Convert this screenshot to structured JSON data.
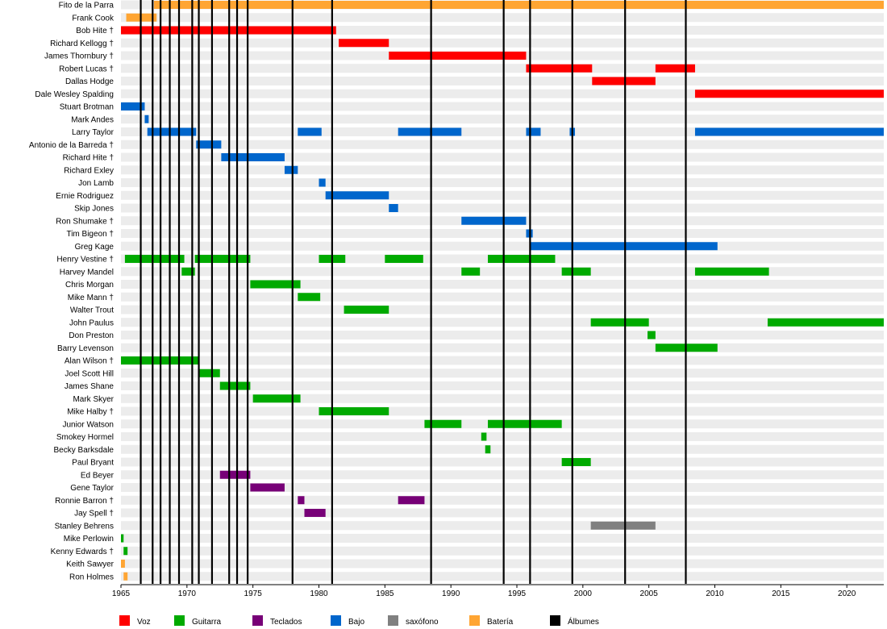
{
  "chart_data": {
    "type": "timeline",
    "xlim": [
      1965,
      2022.8
    ],
    "x_ticks": [
      1965,
      1970,
      1975,
      1980,
      1985,
      1990,
      1995,
      2000,
      2005,
      2010,
      2015,
      2020
    ],
    "grid": "horizontal-stripes",
    "legend_placement": "bottom",
    "roles": [
      {
        "key": "voz",
        "name": "Voz",
        "color": "#ff0000"
      },
      {
        "key": "guitarra",
        "name": "Guitarra",
        "color": "#00aa00"
      },
      {
        "key": "teclados",
        "name": "Teclados",
        "color": "#770077"
      },
      {
        "key": "bajo",
        "name": "Bajo",
        "color": "#0066cc"
      },
      {
        "key": "saxofono",
        "name": "saxófono",
        "color": "#808080"
      },
      {
        "key": "bateria",
        "name": "Batería",
        "color": "#ffa533"
      },
      {
        "key": "albumes",
        "name": "Álbumes",
        "color": "#000000"
      }
    ],
    "albums": [
      1966.5,
      1967.4,
      1968.0,
      1968.7,
      1969.4,
      1970.4,
      1970.9,
      1971.9,
      1973.2,
      1973.8,
      1974.6,
      1978.0,
      1981.0,
      1988.5,
      1994.0,
      1996.0,
      1999.2,
      2003.2,
      2007.8
    ],
    "members": [
      {
        "name": "Fito de la Parra",
        "spans": [
          {
            "role": "bateria",
            "start": 1967.5,
            "end": 2022.8
          }
        ]
      },
      {
        "name": "Frank Cook",
        "spans": [
          {
            "role": "bateria",
            "start": 1965.4,
            "end": 1967.7
          }
        ]
      },
      {
        "name": "Bob Hite †",
        "spans": [
          {
            "role": "voz",
            "start": 1965.0,
            "end": 1981.3
          }
        ]
      },
      {
        "name": "Richard Kellogg †",
        "spans": [
          {
            "role": "voz",
            "start": 1981.5,
            "end": 1985.3
          }
        ]
      },
      {
        "name": "James Thornbury †",
        "spans": [
          {
            "role": "voz",
            "start": 1985.3,
            "end": 1995.7
          }
        ]
      },
      {
        "name": "Robert Lucas †",
        "spans": [
          {
            "role": "voz",
            "start": 1995.7,
            "end": 2000.7
          },
          {
            "role": "voz",
            "start": 2005.5,
            "end": 2008.5
          }
        ]
      },
      {
        "name": "Dallas Hodge",
        "spans": [
          {
            "role": "voz",
            "start": 2000.7,
            "end": 2005.5
          }
        ]
      },
      {
        "name": "Dale Wesley Spalding",
        "spans": [
          {
            "role": "voz",
            "start": 2008.5,
            "end": 2022.8
          }
        ]
      },
      {
        "name": "Stuart Brotman",
        "spans": [
          {
            "role": "bajo",
            "start": 1965.0,
            "end": 1966.8
          }
        ]
      },
      {
        "name": "Mark Andes",
        "spans": [
          {
            "role": "bajo",
            "start": 1966.8,
            "end": 1967.1
          }
        ]
      },
      {
        "name": "Larry Taylor",
        "spans": [
          {
            "role": "bajo",
            "start": 1967.0,
            "end": 1970.7
          },
          {
            "role": "bajo",
            "start": 1978.4,
            "end": 1980.2
          },
          {
            "role": "bajo",
            "start": 1986.0,
            "end": 1990.8
          },
          {
            "role": "bajo",
            "start": 1995.7,
            "end": 1996.8
          },
          {
            "role": "bajo",
            "start": 1999.0,
            "end": 1999.4
          },
          {
            "role": "bajo",
            "start": 2008.5,
            "end": 2022.8
          }
        ]
      },
      {
        "name": "Antonio de la Barreda †",
        "spans": [
          {
            "role": "bajo",
            "start": 1970.7,
            "end": 1972.6
          }
        ]
      },
      {
        "name": "Richard Hite †",
        "spans": [
          {
            "role": "bajo",
            "start": 1972.6,
            "end": 1977.4
          }
        ]
      },
      {
        "name": "Richard Exley",
        "spans": [
          {
            "role": "bajo",
            "start": 1977.4,
            "end": 1978.4
          }
        ]
      },
      {
        "name": "Jon Lamb",
        "spans": [
          {
            "role": "bajo",
            "start": 1980.0,
            "end": 1980.5
          }
        ]
      },
      {
        "name": "Ernie Rodriguez",
        "spans": [
          {
            "role": "bajo",
            "start": 1980.5,
            "end": 1985.3
          }
        ]
      },
      {
        "name": "Skip Jones",
        "spans": [
          {
            "role": "bajo",
            "start": 1985.3,
            "end": 1986.0
          }
        ]
      },
      {
        "name": "Ron Shumake †",
        "spans": [
          {
            "role": "bajo",
            "start": 1990.8,
            "end": 1995.7
          }
        ]
      },
      {
        "name": "Tim Bigeon †",
        "spans": [
          {
            "role": "bajo",
            "start": 1995.7,
            "end": 1996.2
          }
        ]
      },
      {
        "name": "Greg Kage",
        "spans": [
          {
            "role": "bajo",
            "start": 1996.0,
            "end": 2010.2
          }
        ]
      },
      {
        "name": "Henry Vestine †",
        "spans": [
          {
            "role": "guitarra",
            "start": 1965.3,
            "end": 1969.8
          },
          {
            "role": "guitarra",
            "start": 1970.6,
            "end": 1974.8
          },
          {
            "role": "guitarra",
            "start": 1980.0,
            "end": 1982.0
          },
          {
            "role": "guitarra",
            "start": 1985.0,
            "end": 1987.9
          },
          {
            "role": "guitarra",
            "start": 1992.8,
            "end": 1997.9
          }
        ]
      },
      {
        "name": "Harvey Mandel",
        "spans": [
          {
            "role": "guitarra",
            "start": 1969.6,
            "end": 1970.6
          },
          {
            "role": "guitarra",
            "start": 1990.8,
            "end": 1992.2
          },
          {
            "role": "guitarra",
            "start": 1998.4,
            "end": 2000.6
          },
          {
            "role": "guitarra",
            "start": 2008.5,
            "end": 2014.1
          }
        ]
      },
      {
        "name": "Chris Morgan",
        "spans": [
          {
            "role": "guitarra",
            "start": 1974.8,
            "end": 1978.6
          }
        ]
      },
      {
        "name": "Mike Mann †",
        "spans": [
          {
            "role": "guitarra",
            "start": 1978.4,
            "end": 1980.1
          }
        ]
      },
      {
        "name": "Walter Trout",
        "spans": [
          {
            "role": "guitarra",
            "start": 1981.9,
            "end": 1985.3
          }
        ]
      },
      {
        "name": "John Paulus",
        "spans": [
          {
            "role": "guitarra",
            "start": 2000.6,
            "end": 2005.0
          },
          {
            "role": "guitarra",
            "start": 2014.0,
            "end": 2022.8
          }
        ]
      },
      {
        "name": "Don Preston",
        "spans": [
          {
            "role": "guitarra",
            "start": 2004.9,
            "end": 2005.5
          }
        ]
      },
      {
        "name": "Barry Levenson",
        "spans": [
          {
            "role": "guitarra",
            "start": 2005.5,
            "end": 2010.2
          }
        ]
      },
      {
        "name": "Alan Wilson †",
        "spans": [
          {
            "role": "guitarra",
            "start": 1965.0,
            "end": 1970.9
          }
        ]
      },
      {
        "name": "Joel Scott Hill",
        "spans": [
          {
            "role": "guitarra",
            "start": 1970.9,
            "end": 1972.5
          }
        ]
      },
      {
        "name": "James Shane",
        "spans": [
          {
            "role": "guitarra",
            "start": 1972.5,
            "end": 1974.8
          }
        ]
      },
      {
        "name": "Mark Skyer",
        "spans": [
          {
            "role": "guitarra",
            "start": 1975.0,
            "end": 1978.6
          }
        ]
      },
      {
        "name": "Mike Halby †",
        "spans": [
          {
            "role": "guitarra",
            "start": 1980.0,
            "end": 1985.3
          }
        ]
      },
      {
        "name": "Junior Watson",
        "spans": [
          {
            "role": "guitarra",
            "start": 1988.0,
            "end": 1990.8
          },
          {
            "role": "guitarra",
            "start": 1992.8,
            "end": 1998.4
          }
        ]
      },
      {
        "name": "Smokey Hormel",
        "spans": [
          {
            "role": "guitarra",
            "start": 1992.3,
            "end": 1992.7
          }
        ]
      },
      {
        "name": "Becky Barksdale",
        "spans": [
          {
            "role": "guitarra",
            "start": 1992.6,
            "end": 1993.0
          }
        ]
      },
      {
        "name": "Paul Bryant",
        "spans": [
          {
            "role": "guitarra",
            "start": 1998.4,
            "end": 2000.6
          }
        ]
      },
      {
        "name": "Ed Beyer",
        "spans": [
          {
            "role": "teclados",
            "start": 1972.5,
            "end": 1974.8
          }
        ]
      },
      {
        "name": "Gene Taylor",
        "spans": [
          {
            "role": "teclados",
            "start": 1974.8,
            "end": 1977.4
          }
        ]
      },
      {
        "name": "Ronnie Barron †",
        "spans": [
          {
            "role": "teclados",
            "start": 1978.4,
            "end": 1978.9
          },
          {
            "role": "teclados",
            "start": 1986.0,
            "end": 1988.0
          }
        ]
      },
      {
        "name": "Jay Spell †",
        "spans": [
          {
            "role": "teclados",
            "start": 1978.9,
            "end": 1980.5
          }
        ]
      },
      {
        "name": "Stanley Behrens",
        "spans": [
          {
            "role": "saxofono",
            "start": 2000.6,
            "end": 2005.5
          }
        ]
      },
      {
        "name": "Mike Perlowin",
        "spans": [
          {
            "role": "guitarra",
            "start": 1965.0,
            "end": 1965.2
          }
        ]
      },
      {
        "name": "Kenny Edwards †",
        "spans": [
          {
            "role": "guitarra",
            "start": 1965.2,
            "end": 1965.5
          }
        ]
      },
      {
        "name": "Keith Sawyer",
        "spans": [
          {
            "role": "bateria",
            "start": 1965.0,
            "end": 1965.3
          }
        ]
      },
      {
        "name": "Ron Holmes",
        "spans": [
          {
            "role": "bateria",
            "start": 1965.2,
            "end": 1965.5
          }
        ]
      }
    ]
  }
}
